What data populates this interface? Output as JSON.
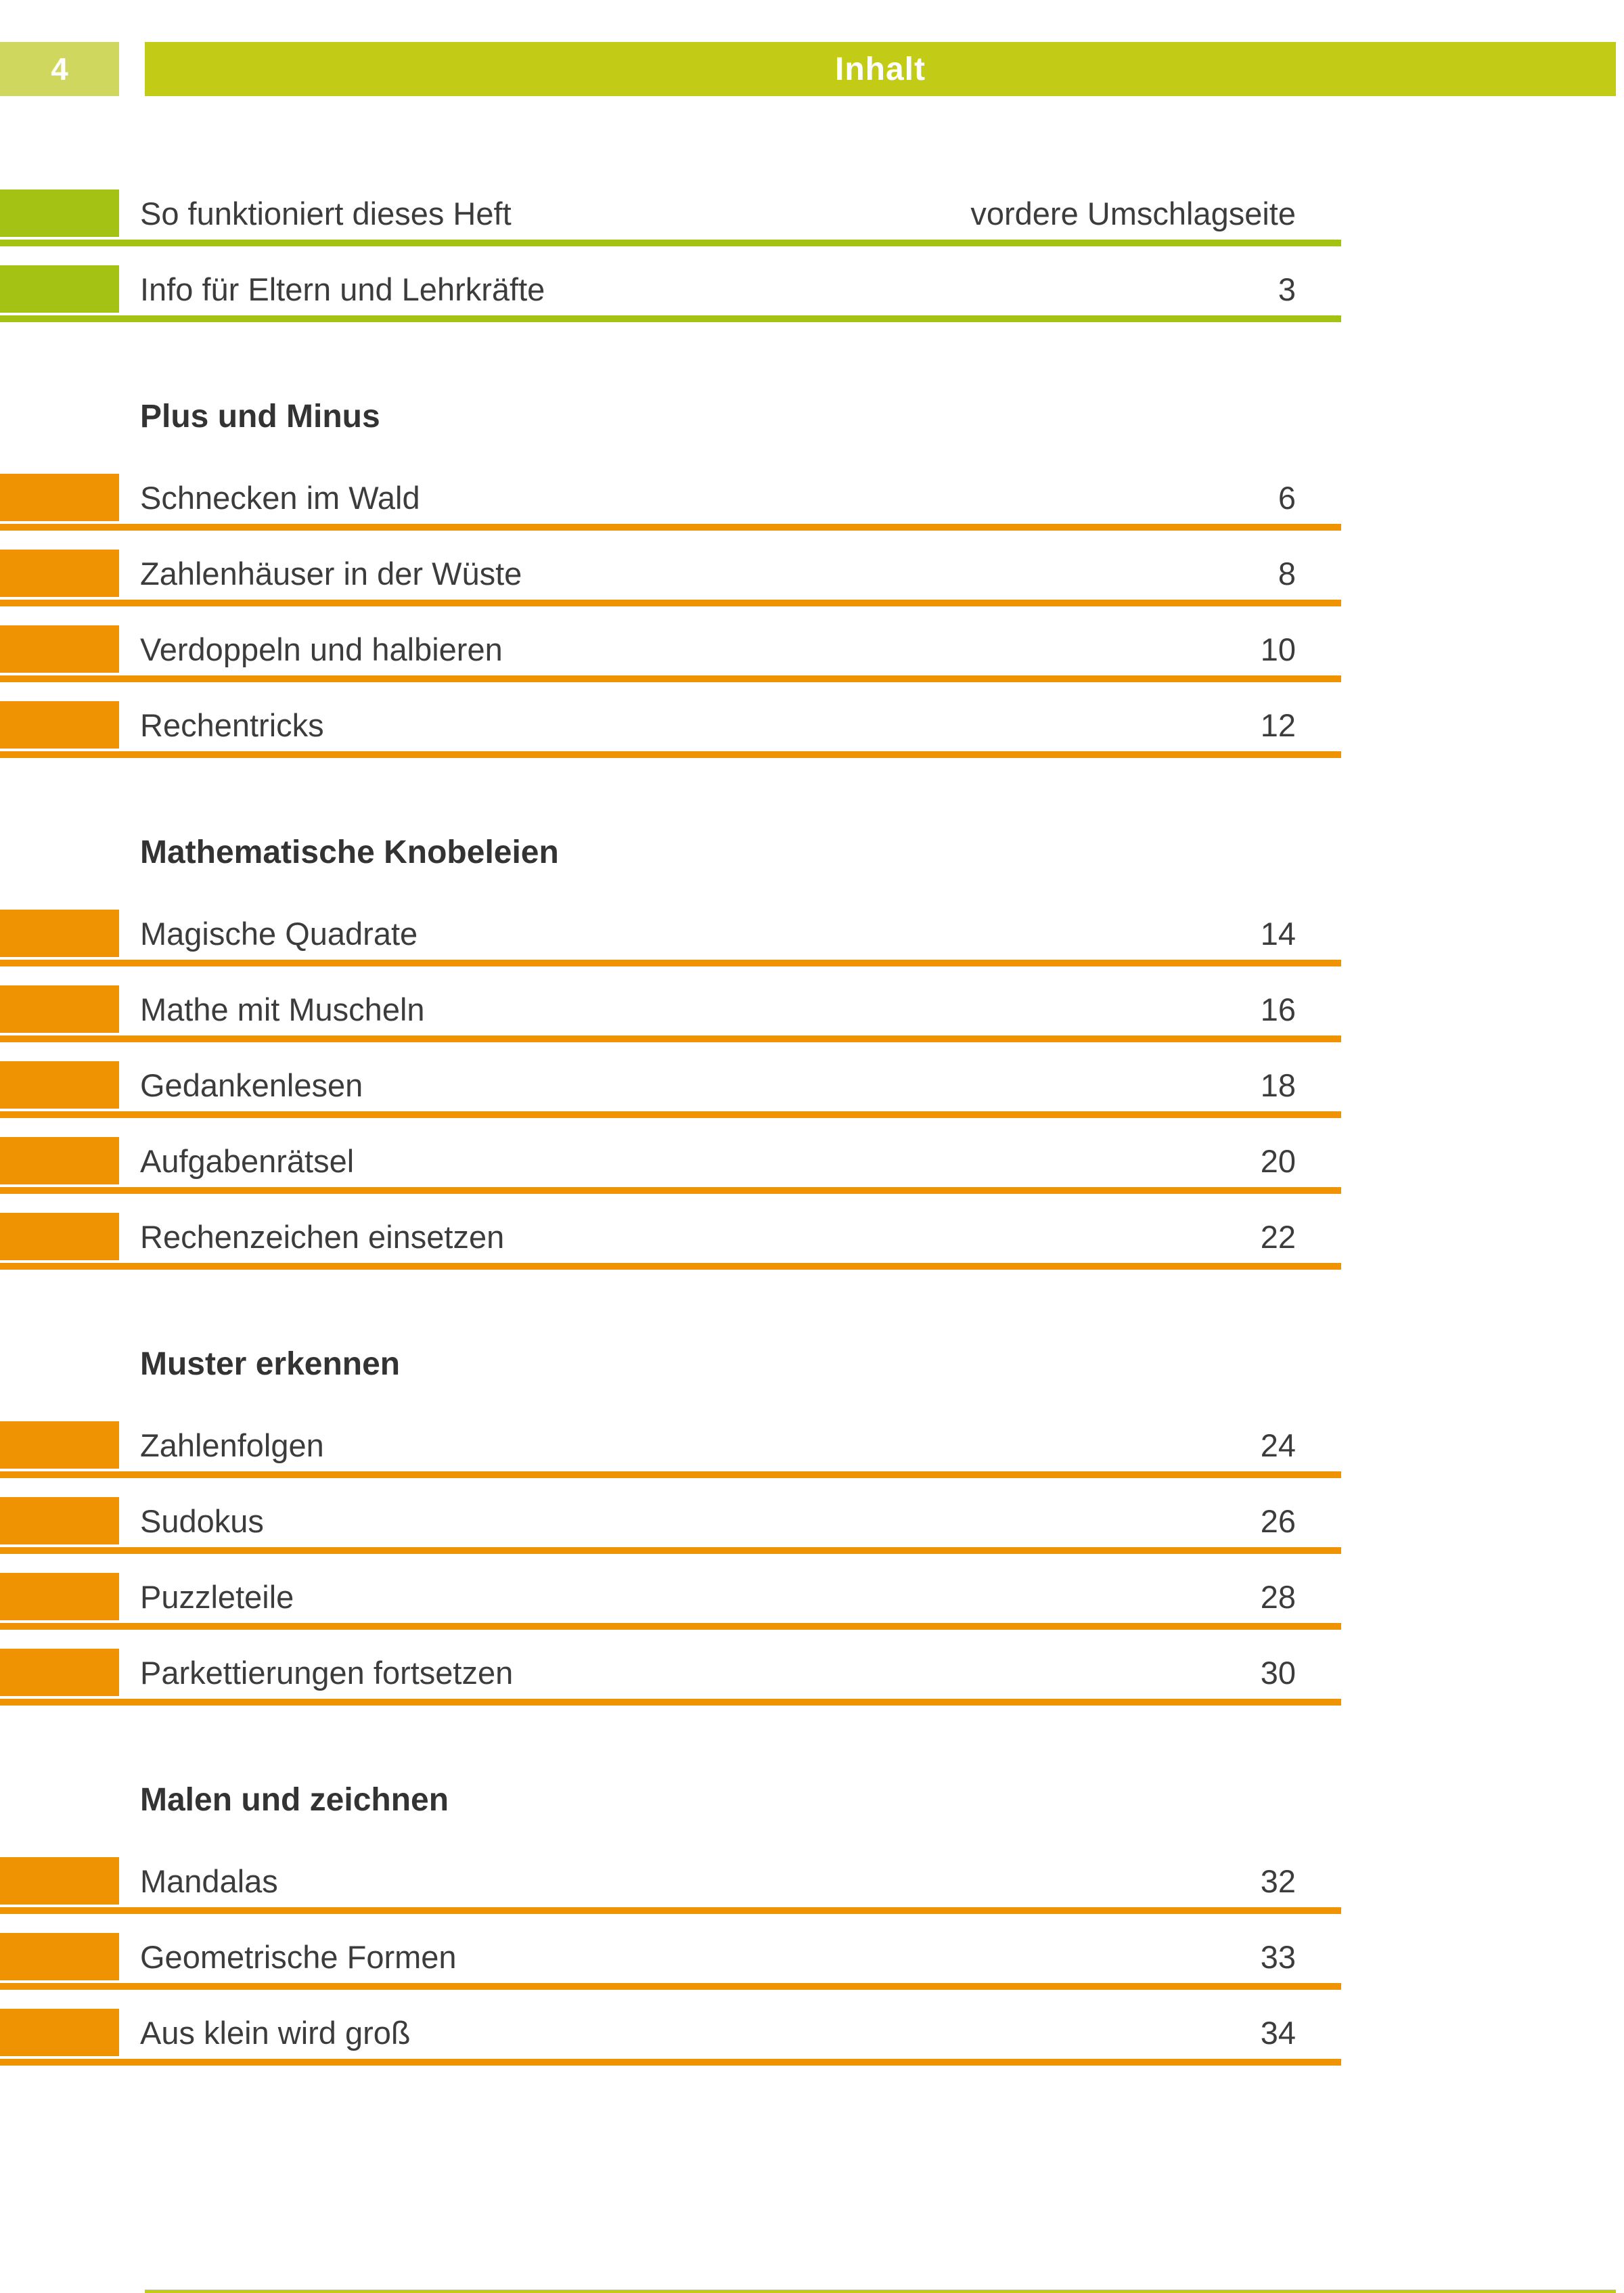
{
  "page": {
    "number": "4",
    "title": "Inhalt"
  },
  "colors": {
    "header_bar": "#c2cb16",
    "header_page_tab": "#d0d75f",
    "entry_green": "#a3c214",
    "entry_orange": "#f09303",
    "text": "#3c3c3c",
    "heading_text": "#333333"
  },
  "toc": {
    "groups": [
      {
        "heading": "",
        "color": "green",
        "items": [
          {
            "title": "So funktioniert dieses Heft",
            "page": "vordere Umschlagseite"
          },
          {
            "title": "Info für Eltern und Lehrkräfte",
            "page": "3"
          }
        ]
      },
      {
        "heading": "Plus und Minus",
        "color": "orange",
        "items": [
          {
            "title": "Schnecken im Wald",
            "page": "6"
          },
          {
            "title": "Zahlenhäuser in der Wüste",
            "page": "8"
          },
          {
            "title": "Verdoppeln und halbieren",
            "page": "10"
          },
          {
            "title": "Rechentricks",
            "page": "12"
          }
        ]
      },
      {
        "heading": "Mathematische Knobeleien",
        "color": "orange",
        "items": [
          {
            "title": "Magische Quadrate",
            "page": "14"
          },
          {
            "title": "Mathe mit Muscheln",
            "page": "16"
          },
          {
            "title": "Gedankenlesen",
            "page": "18"
          },
          {
            "title": "Aufgabenrätsel",
            "page": "20"
          },
          {
            "title": "Rechenzeichen einsetzen",
            "page": "22"
          }
        ]
      },
      {
        "heading": "Muster erkennen",
        "color": "orange",
        "items": [
          {
            "title": "Zahlenfolgen",
            "page": "24"
          },
          {
            "title": "Sudokus",
            "page": "26"
          },
          {
            "title": "Puzzleteile",
            "page": "28"
          },
          {
            "title": "Parkettierungen fortsetzen",
            "page": "30"
          }
        ]
      },
      {
        "heading": "Malen und zeichnen",
        "color": "orange",
        "items": [
          {
            "title": "Mandalas",
            "page": "32"
          },
          {
            "title": "Geometrische Formen",
            "page": "33"
          },
          {
            "title": "Aus klein wird groß",
            "page": "34"
          }
        ]
      }
    ]
  }
}
